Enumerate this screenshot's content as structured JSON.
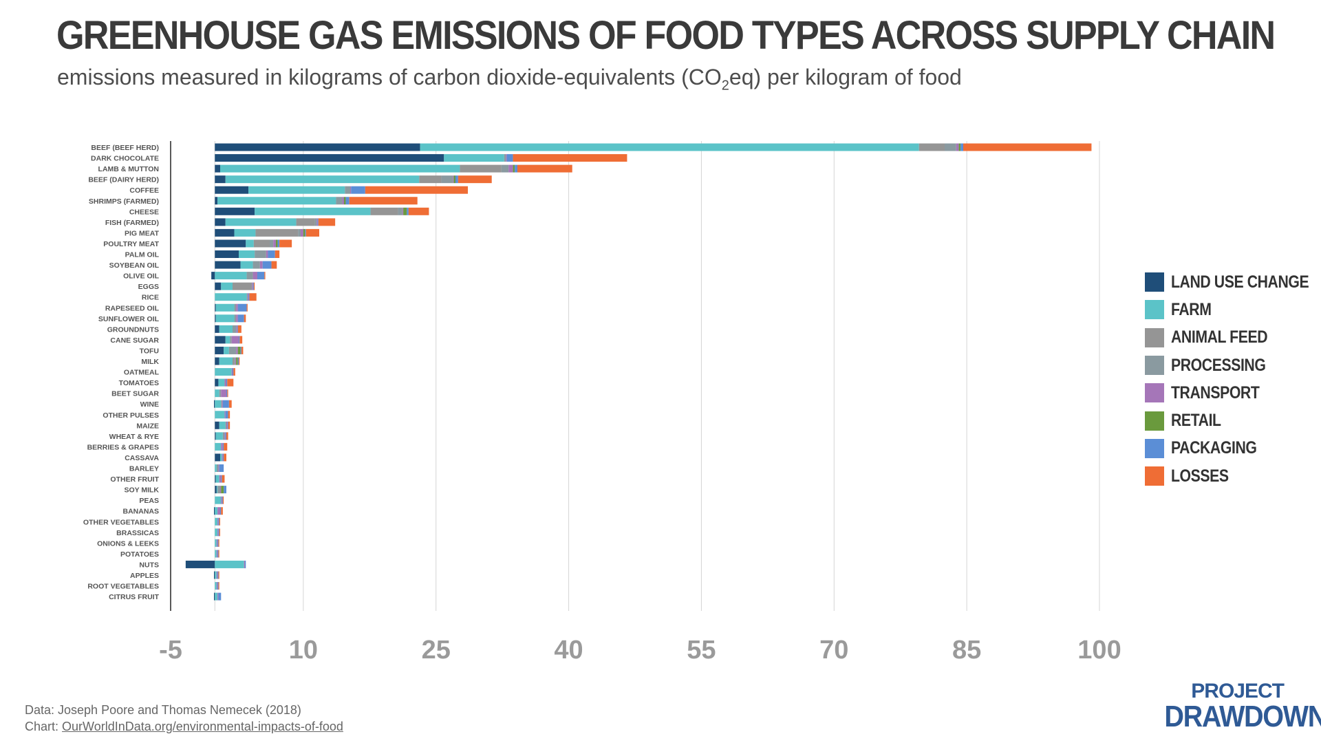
{
  "title": "GREENHOUSE GAS EMISSIONS OF FOOD TYPES ACROSS SUPPLY CHAIN",
  "subtitle_pre": "emissions measured in kilograms of carbon dioxide-equivalents (CO",
  "subtitle_sub": "2",
  "subtitle_post": "eq) per kilogram of food",
  "footer": {
    "source": "Data: Joseph Poore and Thomas Nemecek (2018)",
    "chart_prefix": "Chart: ",
    "chart_link": "OurWorldInData.org/environmental-impacts-of-food"
  },
  "logo": {
    "top": "PROJECT",
    "bottom": "DRAWDOWN",
    "mark": "."
  },
  "chart_data": {
    "type": "bar",
    "orientation": "horizontal",
    "stacked": true,
    "xlim": [
      -5,
      100
    ],
    "xticks": [
      -5,
      10,
      25,
      40,
      55,
      70,
      85,
      100
    ],
    "grid": true,
    "legend_position": "right",
    "categories": [
      "BEEF (BEEF HERD)",
      "DARK CHOCOLATE",
      "LAMB & MUTTON",
      "BEEF (DAIRY HERD)",
      "COFFEE",
      "SHRIMPS (FARMED)",
      "CHEESE",
      "FISH (FARMED)",
      "PIG MEAT",
      "POULTRY MEAT",
      "PALM OIL",
      "SOYBEAN OIL",
      "OLIVE OIL",
      "EGGS",
      "RICE",
      "RAPESEED OIL",
      "SUNFLOWER OIL",
      "GROUNDNUTS",
      "CANE SUGAR",
      "TOFU",
      "MILK",
      "OATMEAL",
      "TOMATOES",
      "BEET SUGAR",
      "WINE",
      "OTHER PULSES",
      "MAIZE",
      "WHEAT & RYE",
      "BERRIES & GRAPES",
      "CASSAVA",
      "BARLEY",
      "OTHER FRUIT",
      "SOY MILK",
      "PEAS",
      "BANANAS",
      "OTHER VEGETABLES",
      "BRASSICAS",
      "ONIONS & LEEKS",
      "POTATOES",
      "NUTS",
      "APPLES",
      "ROOT VEGETABLES",
      "CITRUS FRUIT"
    ],
    "series": [
      {
        "name": "LAND USE CHANGE",
        "color": "#1f4e79",
        "values": [
          23.2,
          25.9,
          0.6,
          1.2,
          3.8,
          0.3,
          4.5,
          1.2,
          2.2,
          3.5,
          2.7,
          2.9,
          -0.4,
          0.7,
          0,
          0.1,
          0.1,
          0.5,
          1.2,
          1.0,
          0.5,
          0,
          0.4,
          0,
          -0.1,
          0,
          0.5,
          0.1,
          0,
          0.6,
          0,
          0.1,
          0.2,
          0,
          -0.1,
          0,
          0,
          0,
          0,
          -3.3,
          -0.1,
          0,
          -0.1
        ]
      },
      {
        "name": "FARM",
        "color": "#5bc3c8",
        "values": [
          56.4,
          6.8,
          27.1,
          21.9,
          10.9,
          13.4,
          13.1,
          8.0,
          2.4,
          0.9,
          1.8,
          1.4,
          3.6,
          1.3,
          3.6,
          2.1,
          2.1,
          1.5,
          0.5,
          0.6,
          1.5,
          1.9,
          0.7,
          0.5,
          0.7,
          1.1,
          0.7,
          0.8,
          0.7,
          0.2,
          0.2,
          0.4,
          0.1,
          0.7,
          0.3,
          0.3,
          0.3,
          0.2,
          0.2,
          3.3,
          0.2,
          0.2,
          0.3
        ]
      },
      {
        "name": "ANIMAL FEED",
        "color": "#959595",
        "values": [
          2.9,
          0,
          4.7,
          2.5,
          0,
          0,
          3.1,
          2.1,
          4.8,
          1.8,
          0,
          0,
          0,
          2.2,
          0,
          0,
          0,
          0,
          0,
          0,
          0.2,
          0,
          0,
          0,
          0,
          0,
          0,
          0,
          0,
          0,
          0,
          0,
          0,
          0,
          0,
          0,
          0,
          0,
          0,
          0,
          0,
          0,
          0
        ]
      },
      {
        "name": "PROCESSING",
        "color": "#8a9aa0",
        "values": [
          1.3,
          0.2,
          0.8,
          1.3,
          0.6,
          0.7,
          0.5,
          0.2,
          0.3,
          0.4,
          1.3,
          0.8,
          0.7,
          0,
          0.1,
          0.2,
          0.2,
          0.4,
          0.2,
          0.8,
          0.1,
          0,
          0,
          0.2,
          0.1,
          0,
          0.1,
          0.2,
          0,
          0,
          0.2,
          0,
          0.3,
          0,
          0,
          0,
          0,
          0,
          0,
          0,
          0,
          0,
          0
        ]
      },
      {
        "name": "TRANSPORT",
        "color": "#a576b8",
        "values": [
          0.3,
          0.1,
          0.5,
          0.1,
          0.1,
          0.2,
          0.1,
          0.1,
          0.3,
          0.3,
          0.2,
          0.3,
          0.5,
          0.1,
          0.1,
          0.2,
          0.2,
          0.1,
          0.8,
          0.2,
          0.1,
          0.1,
          0.2,
          0.6,
          0.1,
          0.1,
          0.1,
          0.1,
          0.2,
          0.1,
          0.1,
          0.2,
          0.1,
          0.1,
          0.3,
          0.1,
          0.1,
          0.1,
          0.1,
          0.1,
          0.1,
          0.1,
          0.1
        ]
      },
      {
        "name": "RETAIL",
        "color": "#6a9a3d",
        "values": [
          0.2,
          0,
          0.2,
          0.2,
          0,
          0.2,
          0.4,
          0,
          0.2,
          0.2,
          0,
          0,
          0,
          0,
          0,
          0,
          0,
          0,
          0,
          0.3,
          0.2,
          0,
          0,
          0,
          0,
          0,
          0,
          0,
          0,
          0,
          0,
          0,
          0.3,
          0,
          0,
          0,
          0,
          0,
          0,
          0,
          0,
          0,
          0
        ]
      },
      {
        "name": "PACKAGING",
        "color": "#5b8ed6",
        "values": [
          0.3,
          0.7,
          0.3,
          0.3,
          1.6,
          0.4,
          0.2,
          0.1,
          0.1,
          0.2,
          0.8,
          1.0,
          0.8,
          0.1,
          0.1,
          1.0,
          0.7,
          0.1,
          0.1,
          0.1,
          0.1,
          0.1,
          0.1,
          0.1,
          0.7,
          0.3,
          0.1,
          0.1,
          0.1,
          0.1,
          0.5,
          0.1,
          0.3,
          0.1,
          0.1,
          0.1,
          0.1,
          0.1,
          0.1,
          0.1,
          0.1,
          0.1,
          0.3
        ]
      },
      {
        "name": "LOSSES",
        "color": "#ef6d35",
        "values": [
          14.5,
          12.9,
          6.2,
          3.8,
          11.6,
          7.7,
          2.3,
          1.9,
          1.5,
          1.4,
          0.5,
          0.6,
          0.1,
          0.1,
          0.8,
          0.1,
          0.2,
          0.4,
          0.3,
          0.2,
          0.1,
          0.2,
          0.7,
          0.1,
          0.3,
          0.2,
          0.2,
          0.2,
          0.4,
          0.3,
          0,
          0.3,
          0,
          0.1,
          0.2,
          0.1,
          0.1,
          0.1,
          0.1,
          0,
          0.1,
          0.1,
          0
        ]
      }
    ]
  }
}
